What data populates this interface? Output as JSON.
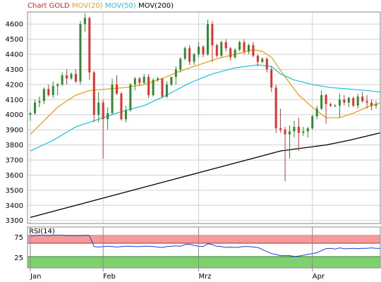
{
  "legend": [
    {
      "label": "Chart GOLD",
      "color": "#d9262b"
    },
    {
      "label": "MOV(20)",
      "color": "#e8a317"
    },
    {
      "label": "MOV(50)",
      "color": "#25c8e0"
    },
    {
      "label": "MOV(200)",
      "color": "#000000"
    }
  ],
  "rsi_label": "RSI(14)",
  "chart_data": [
    {
      "type": "candlestick",
      "title": "Chart GOLD",
      "y_ticks": [
        3300,
        3400,
        3500,
        3600,
        3700,
        3800,
        3900,
        4000,
        4100,
        4200,
        4300,
        4400,
        4500,
        4600
      ],
      "ylim": [
        3280,
        4680
      ],
      "x_labels": [
        {
          "label": "Jan",
          "index": 0
        },
        {
          "label": "Feb",
          "index": 16
        },
        {
          "label": "Mrz",
          "index": 37
        },
        {
          "label": "Apr",
          "index": 62
        }
      ],
      "grid": true,
      "series": [
        {
          "name": "Chart GOLD",
          "ohlc": [
            [
              4000,
              4020,
              3960,
              4010
            ],
            [
              4010,
              4100,
              4000,
              4080
            ],
            [
              4080,
              4120,
              4050,
              4090
            ],
            [
              4090,
              4180,
              4070,
              4170
            ],
            [
              4170,
              4200,
              4120,
              4130
            ],
            [
              4130,
              4220,
              4110,
              4190
            ],
            [
              4190,
              4210,
              4130,
              4200
            ],
            [
              4200,
              4280,
              4190,
              4260
            ],
            [
              4260,
              4300,
              4200,
              4240
            ],
            [
              4240,
              4280,
              4230,
              4270
            ],
            [
              4270,
              4300,
              4210,
              4220
            ],
            [
              4220,
              4620,
              4200,
              4600
            ],
            [
              4600,
              4670,
              4550,
              4640
            ],
            [
              4640,
              4650,
              4230,
              4280
            ],
            [
              4280,
              4290,
              3950,
              4000
            ],
            [
              4000,
              4150,
              3950,
              4080
            ],
            [
              4080,
              4100,
              3710,
              3970
            ],
            [
              3970,
              4050,
              3900,
              4010
            ],
            [
              4010,
              4240,
              4000,
              4200
            ],
            [
              4200,
              4260,
              4130,
              4140
            ],
            [
              4140,
              4150,
              3960,
              3970
            ],
            [
              3970,
              4060,
              3950,
              4030
            ],
            [
              4030,
              4210,
              4020,
              4200
            ],
            [
              4200,
              4250,
              4160,
              4240
            ],
            [
              4240,
              4250,
              4190,
              4210
            ],
            [
              4210,
              4270,
              4200,
              4250
            ],
            [
              4250,
              4270,
              4110,
              4130
            ],
            [
              4130,
              4240,
              4120,
              4230
            ],
            [
              4230,
              4250,
              4220,
              4240
            ],
            [
              4240,
              4240,
              4110,
              4120
            ],
            [
              4120,
              4220,
              4110,
              4200
            ],
            [
              4200,
              4250,
              4190,
              4250
            ],
            [
              4250,
              4320,
              4200,
              4300
            ],
            [
              4300,
              4380,
              4280,
              4370
            ],
            [
              4370,
              4450,
              4360,
              4440
            ],
            [
              4440,
              4460,
              4330,
              4350
            ],
            [
              4350,
              4410,
              4330,
              4400
            ],
            [
              4400,
              4480,
              4380,
              4450
            ],
            [
              4450,
              4460,
              4380,
              4400
            ],
            [
              4400,
              4630,
              4390,
              4600
            ],
            [
              4600,
              4620,
              4350,
              4460
            ],
            [
              4460,
              4470,
              4380,
              4390
            ],
            [
              4390,
              4490,
              4380,
              4480
            ],
            [
              4480,
              4500,
              4420,
              4440
            ],
            [
              4440,
              4450,
              4360,
              4380
            ],
            [
              4380,
              4440,
              4370,
              4430
            ],
            [
              4430,
              4490,
              4420,
              4480
            ],
            [
              4480,
              4500,
              4400,
              4420
            ],
            [
              4420,
              4470,
              4400,
              4460
            ],
            [
              4460,
              4480,
              4380,
              4390
            ],
            [
              4390,
              4400,
              4320,
              4350
            ],
            [
              4350,
              4380,
              4340,
              4370
            ],
            [
              4370,
              4380,
              4280,
              4300
            ],
            [
              4300,
              4320,
              4150,
              4180
            ],
            [
              4180,
              4200,
              3880,
              3910
            ],
            [
              3910,
              4040,
              3880,
              3900
            ],
            [
              3900,
              3920,
              3560,
              3870
            ],
            [
              3870,
              3930,
              3710,
              3890
            ],
            [
              3890,
              3960,
              3850,
              3920
            ],
            [
              3920,
              3980,
              3760,
              3880
            ],
            [
              3880,
              3920,
              3860,
              3890
            ],
            [
              3890,
              3920,
              3850,
              3910
            ],
            [
              3910,
              4000,
              3900,
              3990
            ],
            [
              3990,
              4060,
              3970,
              4040
            ],
            [
              4040,
              4160,
              4030,
              4130
            ],
            [
              4130,
              4140,
              3940,
              4070
            ],
            [
              4070,
              4080,
              4050,
              4060
            ],
            [
              4060,
              4070,
              4050,
              4060
            ],
            [
              4060,
              4140,
              3980,
              4100
            ],
            [
              4100,
              4130,
              4060,
              4080
            ],
            [
              4080,
              4120,
              4050,
              4110
            ],
            [
              4110,
              4120,
              4050,
              4060
            ],
            [
              4060,
              4140,
              4040,
              4120
            ],
            [
              4120,
              4150,
              4080,
              4090
            ],
            [
              4090,
              4130,
              4040,
              4080
            ],
            [
              4080,
              4100,
              4030,
              4060
            ],
            [
              4060,
              4090,
              4040,
              4070
            ]
          ]
        },
        {
          "name": "MOV(20)",
          "points": [
            [
              0,
              3870
            ],
            [
              3,
              3960
            ],
            [
              6,
              4050
            ],
            [
              10,
              4130
            ],
            [
              13,
              4160
            ],
            [
              17,
              4170
            ],
            [
              21,
              4180
            ],
            [
              25,
              4200
            ],
            [
              29,
              4240
            ],
            [
              33,
              4290
            ],
            [
              37,
              4330
            ],
            [
              41,
              4370
            ],
            [
              45,
              4400
            ],
            [
              49,
              4430
            ],
            [
              51,
              4420
            ],
            [
              53,
              4380
            ],
            [
              56,
              4250
            ],
            [
              59,
              4130
            ],
            [
              62,
              4050
            ],
            [
              65,
              3980
            ],
            [
              68,
              3980
            ],
            [
              71,
              4010
            ],
            [
              74,
              4050
            ],
            [
              77,
              4080
            ]
          ]
        },
        {
          "name": "MOV(50)",
          "points": [
            [
              0,
              3760
            ],
            [
              5,
              3830
            ],
            [
              10,
              3920
            ],
            [
              15,
              3970
            ],
            [
              20,
              4020
            ],
            [
              25,
              4060
            ],
            [
              30,
              4130
            ],
            [
              35,
              4210
            ],
            [
              40,
              4270
            ],
            [
              45,
              4310
            ],
            [
              50,
              4330
            ],
            [
              53,
              4320
            ],
            [
              55,
              4270
            ],
            [
              58,
              4230
            ],
            [
              62,
              4200
            ],
            [
              66,
              4180
            ],
            [
              70,
              4170
            ],
            [
              74,
              4160
            ],
            [
              77,
              4150
            ]
          ]
        },
        {
          "name": "MOV(200)",
          "points": [
            [
              0,
              3320
            ],
            [
              10,
              3400
            ],
            [
              20,
              3480
            ],
            [
              30,
              3560
            ],
            [
              40,
              3640
            ],
            [
              50,
              3720
            ],
            [
              55,
              3760
            ],
            [
              60,
              3780
            ],
            [
              65,
              3800
            ],
            [
              70,
              3830
            ],
            [
              77,
              3880
            ]
          ]
        }
      ]
    },
    {
      "type": "line",
      "title": "RSI(14)",
      "ylim": [
        0,
        100
      ],
      "y_ticks": [
        25,
        75
      ],
      "overbought": 75,
      "oversold": 25,
      "series": [
        {
          "name": "RSI(14)",
          "values": [
            78,
            79,
            80,
            80,
            79,
            80,
            80,
            80,
            79,
            79,
            79,
            79,
            80,
            79,
            52,
            51,
            52,
            53,
            52,
            51,
            52,
            53,
            53,
            52,
            52,
            53,
            53,
            52,
            51,
            50,
            52,
            53,
            54,
            53,
            57,
            58,
            55,
            53,
            52,
            59,
            57,
            53,
            52,
            50,
            51,
            50,
            51,
            52,
            52,
            51,
            50,
            45,
            40,
            35,
            33,
            30,
            30,
            30,
            28,
            29,
            31,
            33,
            35,
            37,
            42,
            47,
            48,
            46,
            49,
            47,
            47,
            48,
            47,
            48,
            48,
            49,
            48,
            48
          ]
        }
      ]
    }
  ]
}
